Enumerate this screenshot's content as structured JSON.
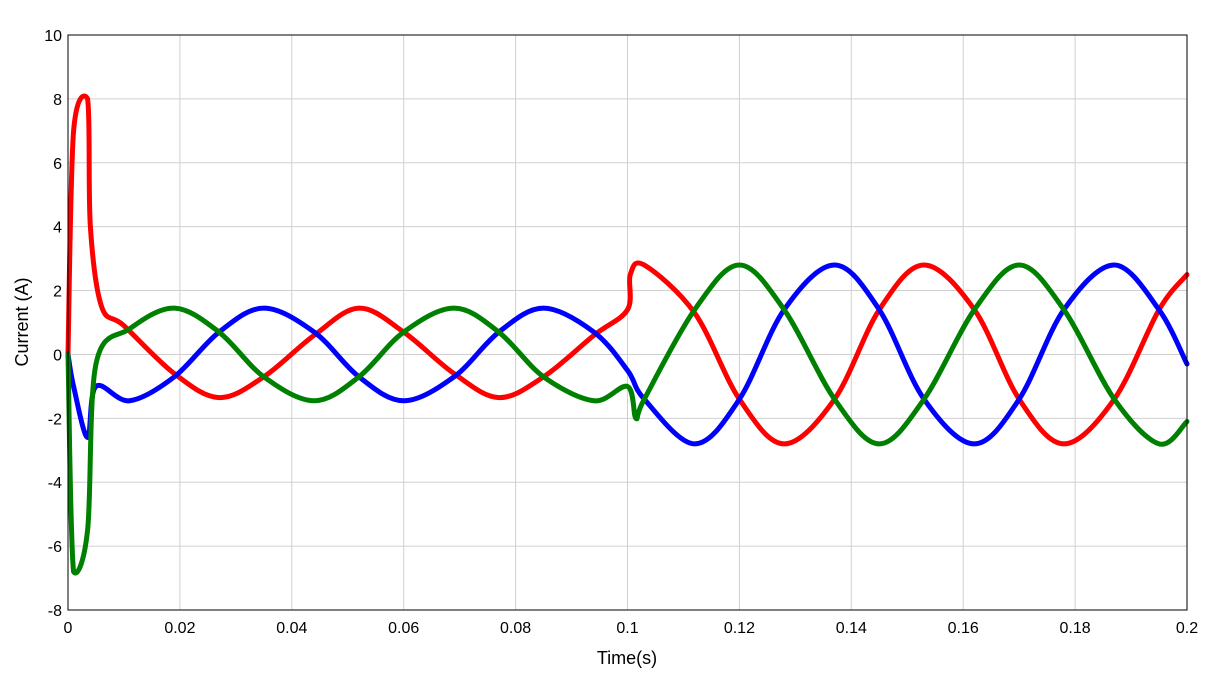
{
  "chart_data": {
    "type": "line",
    "title": "",
    "xlabel": "Time(s)",
    "ylabel": "Current (A)",
    "xlim": [
      0,
      0.2
    ],
    "ylim": [
      -8,
      10
    ],
    "xticks": [
      0,
      0.02,
      0.04,
      0.06,
      0.08,
      0.1,
      0.12,
      0.14,
      0.16,
      0.18,
      0.2
    ],
    "xtick_labels": [
      "0",
      "0.02",
      "0.04",
      "0.06",
      "0.08",
      "0.1",
      "0.12",
      "0.14",
      "0.16",
      "0.18",
      "0.2"
    ],
    "yticks": [
      -8,
      -6,
      -4,
      -2,
      0,
      2,
      4,
      6,
      8,
      10
    ],
    "ytick_labels": [
      "-8",
      "-6",
      "-4",
      "-2",
      "0",
      "2",
      "4",
      "6",
      "8",
      "10"
    ],
    "grid": true,
    "legend": "none",
    "series": [
      {
        "color": "#ff0000",
        "x": [
          0,
          0.001,
          0.0035,
          0.004,
          0.006,
          0.01,
          0.019,
          0.027,
          0.035,
          0.044,
          0.052,
          0.06,
          0.069,
          0.077,
          0.085,
          0.094,
          0.1,
          0.1005,
          0.103,
          0.112,
          0.12,
          0.128,
          0.137,
          0.145,
          0.153,
          0.162,
          0.17,
          0.178,
          0.187,
          0.195,
          0.2
        ],
        "y": [
          0,
          7,
          8.0,
          4.0,
          1.5,
          0.9,
          -0.6,
          -1.35,
          -0.7,
          0.6,
          1.45,
          0.7,
          -0.6,
          -1.35,
          -0.7,
          0.6,
          1.4,
          2.5,
          2.8,
          1.3,
          -1.4,
          -2.8,
          -1.4,
          1.4,
          2.8,
          1.4,
          -1.4,
          -2.8,
          -1.4,
          1.4,
          2.5
        ]
      },
      {
        "color": "#0000ff",
        "x": [
          0,
          0.001,
          0.0035,
          0.005,
          0.011,
          0.019,
          0.027,
          0.035,
          0.044,
          0.052,
          0.06,
          0.069,
          0.077,
          0.085,
          0.094,
          0.1,
          0.103,
          0.112,
          0.12,
          0.128,
          0.137,
          0.145,
          0.153,
          0.162,
          0.17,
          0.178,
          0.187,
          0.195,
          0.2
        ],
        "y": [
          0,
          -1.0,
          -2.6,
          -1.0,
          -1.45,
          -0.7,
          0.7,
          1.45,
          0.7,
          -0.7,
          -1.45,
          -0.7,
          0.7,
          1.45,
          0.7,
          -0.5,
          -1.4,
          -2.8,
          -1.4,
          1.4,
          2.8,
          1.4,
          -1.4,
          -2.8,
          -1.4,
          1.4,
          2.8,
          1.4,
          -0.3
        ]
      },
      {
        "color": "#008000",
        "x": [
          0,
          0.001,
          0.0035,
          0.005,
          0.011,
          0.019,
          0.027,
          0.035,
          0.044,
          0.052,
          0.06,
          0.069,
          0.077,
          0.085,
          0.094,
          0.1,
          0.1015,
          0.103,
          0.112,
          0.12,
          0.128,
          0.137,
          0.145,
          0.153,
          0.162,
          0.17,
          0.178,
          0.187,
          0.195,
          0.2
        ],
        "y": [
          0,
          -6.8,
          -5.5,
          -0.3,
          0.8,
          1.45,
          0.7,
          -0.7,
          -1.45,
          -0.7,
          0.7,
          1.45,
          0.7,
          -0.7,
          -1.45,
          -1.0,
          -2.0,
          -1.4,
          1.4,
          2.8,
          1.4,
          -1.4,
          -2.8,
          -1.4,
          1.4,
          2.8,
          1.4,
          -1.4,
          -2.8,
          -2.1
        ]
      }
    ]
  }
}
